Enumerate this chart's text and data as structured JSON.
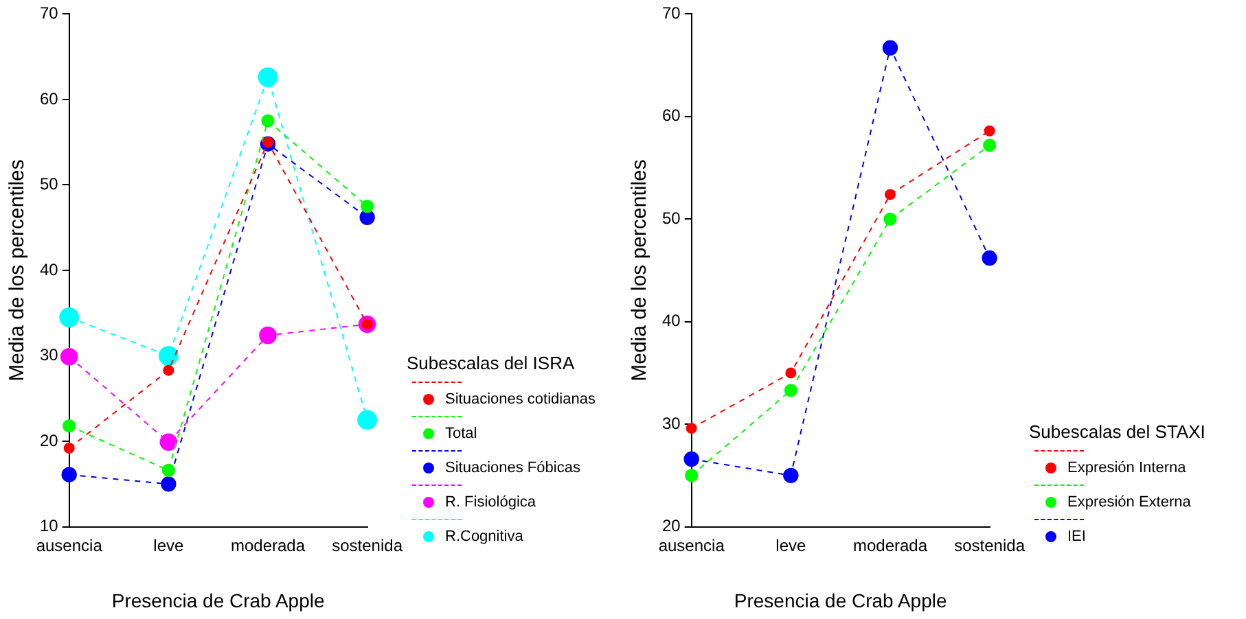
{
  "chart_data": [
    {
      "type": "line",
      "xlabel": "Presencia de Crab Apple",
      "ylabel": "Media de los percentiles",
      "legend_title": "Subescalas del ISRA",
      "legend": "right",
      "grid": false,
      "marker": "circle",
      "line_style": "dashed",
      "categories": [
        "ausencia",
        "leve",
        "moderada",
        "sostenida"
      ],
      "ylim": [
        10,
        70
      ],
      "yticks": [
        10,
        20,
        30,
        40,
        50,
        60,
        70
      ],
      "series": [
        {
          "name": "Situaciones cotidianas",
          "color": "#ff0000",
          "values": [
            19.2,
            28.3,
            55.0,
            33.7
          ]
        },
        {
          "name": "Total",
          "color": "#00ff00",
          "values": [
            21.8,
            16.6,
            57.5,
            47.5
          ]
        },
        {
          "name": "Situaciones Fóbicas",
          "color": "#0000ff",
          "values": [
            16.1,
            15.0,
            54.8,
            46.2
          ]
        },
        {
          "name": "R. Fisiológica",
          "color": "#ff00ff",
          "values": [
            29.9,
            19.9,
            32.4,
            33.7
          ]
        },
        {
          "name": "R.Cognitiva",
          "color": "#00ffff",
          "values": [
            34.5,
            30.0,
            62.6,
            22.5
          ]
        }
      ]
    },
    {
      "type": "line",
      "xlabel": "Presencia de Crab Apple",
      "ylabel": "Media de los percentiles",
      "legend_title": "Subescalas del STAXI",
      "legend": "right",
      "grid": false,
      "marker": "circle",
      "line_style": "dashed",
      "categories": [
        "ausencia",
        "leve",
        "moderada",
        "sostenida"
      ],
      "ylim": [
        20,
        70
      ],
      "yticks": [
        20,
        30,
        40,
        50,
        60,
        70
      ],
      "series": [
        {
          "name": "Expresión Interna",
          "color": "#ff0000",
          "values": [
            29.6,
            35.0,
            52.4,
            58.6
          ]
        },
        {
          "name": "Expresión Externa",
          "color": "#00ff00",
          "values": [
            25.0,
            33.3,
            50.0,
            57.2
          ]
        },
        {
          "name": "IEI",
          "color": "#0000ff",
          "values": [
            26.6,
            25.0,
            66.7,
            46.2
          ]
        }
      ]
    }
  ]
}
